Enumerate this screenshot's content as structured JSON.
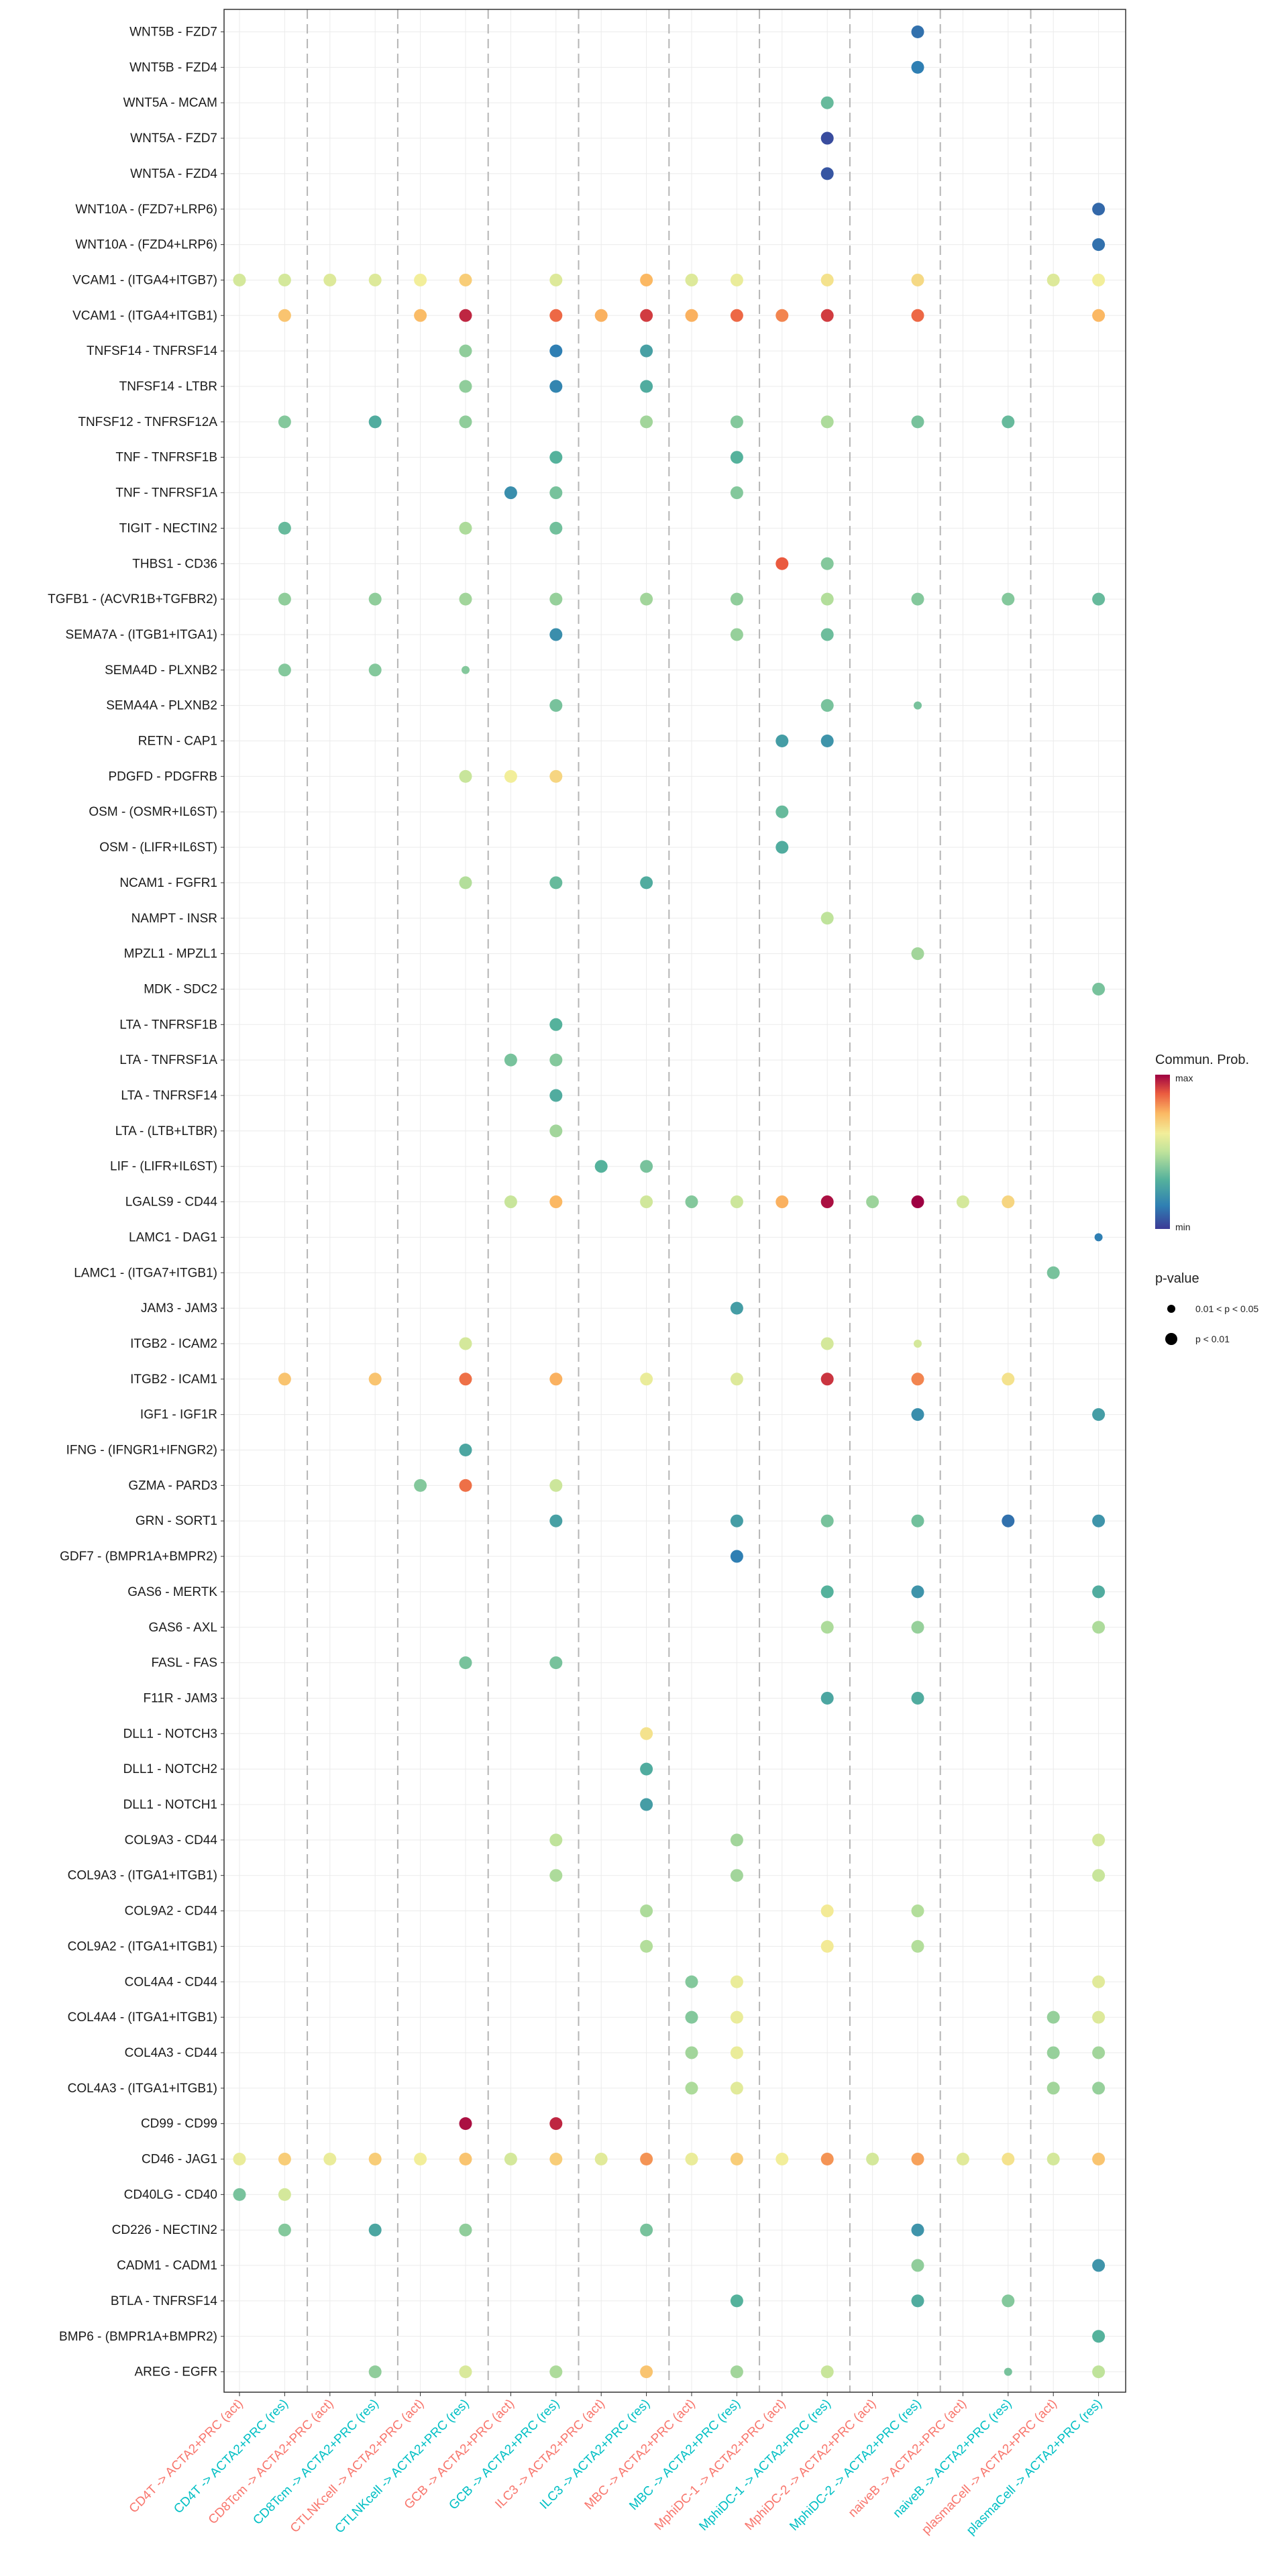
{
  "chart_data": {
    "type": "scatter",
    "subtype": "bubble-dotplot",
    "title": "",
    "xlabel": "",
    "ylabel": "",
    "grid": true,
    "x_categories": [
      "CD4T -> ACTA2+PRC (act)",
      "CD4T -> ACTA2+PRC (res)",
      "CD8Tcm -> ACTA2+PRC (act)",
      "CD8Tcm -> ACTA2+PRC (res)",
      "CTLNKcell -> ACTA2+PRC (act)",
      "CTLNKcell -> ACTA2+PRC (res)",
      "GCB -> ACTA2+PRC (act)",
      "GCB -> ACTA2+PRC (res)",
      "ILC3 -> ACTA2+PRC (act)",
      "ILC3 -> ACTA2+PRC (res)",
      "MBC -> ACTA2+PRC (act)",
      "MBC -> ACTA2+PRC (res)",
      "MphiDC-1 -> ACTA2+PRC (act)",
      "MphiDC-1 -> ACTA2+PRC (res)",
      "MphiDC-2 -> ACTA2+PRC (act)",
      "MphiDC-2 -> ACTA2+PRC (res)",
      "naiveB -> ACTA2+PRC (act)",
      "naiveB -> ACTA2+PRC (res)",
      "plasmaCell -> ACTA2+PRC (act)",
      "plasmaCell -> ACTA2+PRC (res)"
    ],
    "x_label_colors": {
      "act": "#F8766D",
      "res": "#00BFC4"
    },
    "y_categories": [
      "WNT5B - FZD7",
      "WNT5B - FZD4",
      "WNT5A - MCAM",
      "WNT5A - FZD7",
      "WNT5A - FZD4",
      "WNT10A - (FZD7+LRP6)",
      "WNT10A - (FZD4+LRP6)",
      "VCAM1 - (ITGA4+ITGB7)",
      "VCAM1 - (ITGA4+ITGB1)",
      "TNFSF14 - TNFRSF14",
      "TNFSF14 - LTBR",
      "TNFSF12 - TNFRSF12A",
      "TNF - TNFRSF1B",
      "TNF - TNFRSF1A",
      "TIGIT - NECTIN2",
      "THBS1 - CD36",
      "TGFB1 - (ACVR1B+TGFBR2)",
      "SEMA7A - (ITGB1+ITGA1)",
      "SEMA4D - PLXNB2",
      "SEMA4A - PLXNB2",
      "RETN - CAP1",
      "PDGFD - PDGFRB",
      "OSM - (OSMR+IL6ST)",
      "OSM - (LIFR+IL6ST)",
      "NCAM1 - FGFR1",
      "NAMPT - INSR",
      "MPZL1 - MPZL1",
      "MDK - SDC2",
      "LTA - TNFRSF1B",
      "LTA - TNFRSF1A",
      "LTA - TNFRSF14",
      "LTA - (LTB+LTBR)",
      "LIF - (LIFR+IL6ST)",
      "LGALS9 - CD44",
      "LAMC1 - DAG1",
      "LAMC1 - (ITGA7+ITGB1)",
      "JAM3 - JAM3",
      "ITGB2 - ICAM2",
      "ITGB2 - ICAM1",
      "IGF1 - IGF1R",
      "IFNG - (IFNGR1+IFNGR2)",
      "GZMA - PARD3",
      "GRN - SORT1",
      "GDF7 - (BMPR1A+BMPR2)",
      "GAS6 - MERTK",
      "GAS6 - AXL",
      "FASL - FAS",
      "F11R - JAM3",
      "DLL1 - NOTCH3",
      "DLL1 - NOTCH2",
      "DLL1 - NOTCH1",
      "COL9A3 - CD44",
      "COL9A3 - (ITGA1+ITGB1)",
      "COL9A2 - CD44",
      "COL9A2 - (ITGA1+ITGB1)",
      "COL4A4 - CD44",
      "COL4A4 - (ITGA1+ITGB1)",
      "COL4A3 - CD44",
      "COL4A3 - (ITGA1+ITGB1)",
      "CD99 - CD99",
      "CD46 - JAG1",
      "CD40LG - CD40",
      "CD226 - NECTIN2",
      "CADM1 - CADM1",
      "BTLA - TNFRSF14",
      "BMP6 - (BMPR1A+BMPR2)",
      "AREG - EGFR"
    ],
    "value_scale": "normalized 0 (min) to 1 (max) communication probability",
    "size_encoding": {
      "0": "0.01 < p < 0.05",
      "1": "p < 0.01"
    },
    "points": [
      [
        15,
        0,
        0.12,
        1
      ],
      [
        15,
        1,
        0.15,
        1
      ],
      [
        13,
        2,
        0.35,
        1
      ],
      [
        13,
        3,
        0.04,
        1
      ],
      [
        13,
        4,
        0.06,
        1
      ],
      [
        19,
        5,
        0.1,
        1
      ],
      [
        19,
        6,
        0.12,
        1
      ],
      [
        0,
        7,
        0.55,
        1
      ],
      [
        1,
        7,
        0.55,
        1
      ],
      [
        2,
        7,
        0.57,
        1
      ],
      [
        3,
        7,
        0.57,
        1
      ],
      [
        4,
        7,
        0.62,
        1
      ],
      [
        5,
        7,
        0.7,
        1
      ],
      [
        7,
        7,
        0.57,
        1
      ],
      [
        9,
        7,
        0.75,
        1
      ],
      [
        10,
        7,
        0.57,
        1
      ],
      [
        11,
        7,
        0.6,
        1
      ],
      [
        13,
        7,
        0.65,
        1
      ],
      [
        15,
        7,
        0.67,
        1
      ],
      [
        18,
        7,
        0.57,
        1
      ],
      [
        19,
        7,
        0.62,
        1
      ],
      [
        1,
        8,
        0.72,
        1
      ],
      [
        4,
        8,
        0.74,
        1
      ],
      [
        5,
        8,
        0.95,
        1
      ],
      [
        7,
        8,
        0.86,
        1
      ],
      [
        8,
        8,
        0.76,
        1
      ],
      [
        9,
        8,
        0.92,
        1
      ],
      [
        10,
        8,
        0.76,
        1
      ],
      [
        11,
        8,
        0.86,
        1
      ],
      [
        12,
        8,
        0.82,
        1
      ],
      [
        13,
        8,
        0.92,
        1
      ],
      [
        15,
        8,
        0.86,
        1
      ],
      [
        19,
        8,
        0.75,
        1
      ],
      [
        5,
        9,
        0.42,
        1
      ],
      [
        7,
        9,
        0.15,
        1
      ],
      [
        9,
        9,
        0.26,
        1
      ],
      [
        5,
        10,
        0.42,
        1
      ],
      [
        7,
        10,
        0.17,
        1
      ],
      [
        9,
        10,
        0.3,
        1
      ],
      [
        1,
        11,
        0.4,
        1
      ],
      [
        3,
        11,
        0.3,
        1
      ],
      [
        5,
        11,
        0.42,
        1
      ],
      [
        9,
        11,
        0.45,
        1
      ],
      [
        11,
        11,
        0.4,
        1
      ],
      [
        13,
        11,
        0.47,
        1
      ],
      [
        15,
        11,
        0.38,
        1
      ],
      [
        17,
        11,
        0.35,
        1
      ],
      [
        7,
        12,
        0.32,
        1
      ],
      [
        11,
        12,
        0.32,
        1
      ],
      [
        6,
        13,
        0.2,
        1
      ],
      [
        7,
        13,
        0.38,
        1
      ],
      [
        11,
        13,
        0.4,
        1
      ],
      [
        1,
        14,
        0.35,
        1
      ],
      [
        5,
        14,
        0.47,
        1
      ],
      [
        7,
        14,
        0.37,
        1
      ],
      [
        12,
        15,
        0.88,
        1
      ],
      [
        13,
        15,
        0.4,
        1
      ],
      [
        1,
        16,
        0.42,
        1
      ],
      [
        3,
        16,
        0.42,
        1
      ],
      [
        5,
        16,
        0.45,
        1
      ],
      [
        7,
        16,
        0.43,
        1
      ],
      [
        9,
        16,
        0.45,
        1
      ],
      [
        11,
        16,
        0.42,
        1
      ],
      [
        13,
        16,
        0.48,
        1
      ],
      [
        15,
        16,
        0.4,
        1
      ],
      [
        17,
        16,
        0.4,
        1
      ],
      [
        19,
        16,
        0.35,
        1
      ],
      [
        7,
        17,
        0.2,
        1
      ],
      [
        11,
        17,
        0.43,
        1
      ],
      [
        13,
        17,
        0.36,
        1
      ],
      [
        1,
        18,
        0.4,
        1
      ],
      [
        3,
        18,
        0.4,
        1
      ],
      [
        5,
        18,
        0.4,
        0
      ],
      [
        7,
        19,
        0.38,
        1
      ],
      [
        13,
        19,
        0.38,
        1
      ],
      [
        15,
        19,
        0.38,
        0
      ],
      [
        12,
        20,
        0.25,
        1
      ],
      [
        13,
        20,
        0.22,
        1
      ],
      [
        5,
        21,
        0.52,
        1
      ],
      [
        6,
        21,
        0.62,
        1
      ],
      [
        7,
        21,
        0.68,
        1
      ],
      [
        12,
        22,
        0.35,
        1
      ],
      [
        12,
        23,
        0.3,
        1
      ],
      [
        5,
        24,
        0.48,
        1
      ],
      [
        7,
        24,
        0.35,
        1
      ],
      [
        9,
        24,
        0.3,
        1
      ],
      [
        13,
        25,
        0.5,
        1
      ],
      [
        15,
        26,
        0.45,
        1
      ],
      [
        19,
        27,
        0.38,
        1
      ],
      [
        7,
        28,
        0.32,
        1
      ],
      [
        6,
        29,
        0.38,
        1
      ],
      [
        7,
        29,
        0.4,
        1
      ],
      [
        7,
        30,
        0.3,
        1
      ],
      [
        7,
        31,
        0.45,
        1
      ],
      [
        8,
        32,
        0.32,
        1
      ],
      [
        9,
        32,
        0.38,
        1
      ],
      [
        6,
        33,
        0.52,
        1
      ],
      [
        7,
        33,
        0.75,
        1
      ],
      [
        9,
        33,
        0.54,
        1
      ],
      [
        10,
        33,
        0.4,
        1
      ],
      [
        11,
        33,
        0.53,
        1
      ],
      [
        12,
        33,
        0.76,
        1
      ],
      [
        13,
        33,
        0.98,
        1
      ],
      [
        14,
        33,
        0.44,
        1
      ],
      [
        15,
        33,
        1.0,
        1
      ],
      [
        16,
        33,
        0.55,
        1
      ],
      [
        17,
        33,
        0.68,
        1
      ],
      [
        19,
        34,
        0.15,
        0
      ],
      [
        18,
        35,
        0.38,
        1
      ],
      [
        11,
        36,
        0.25,
        1
      ],
      [
        5,
        37,
        0.55,
        1
      ],
      [
        13,
        37,
        0.55,
        1
      ],
      [
        15,
        37,
        0.55,
        0
      ],
      [
        1,
        38,
        0.72,
        1
      ],
      [
        3,
        38,
        0.72,
        1
      ],
      [
        5,
        38,
        0.85,
        1
      ],
      [
        7,
        38,
        0.76,
        1
      ],
      [
        9,
        38,
        0.6,
        1
      ],
      [
        11,
        38,
        0.57,
        1
      ],
      [
        13,
        38,
        0.93,
        1
      ],
      [
        15,
        38,
        0.82,
        1
      ],
      [
        17,
        38,
        0.65,
        1
      ],
      [
        15,
        39,
        0.2,
        1
      ],
      [
        19,
        39,
        0.25,
        1
      ],
      [
        5,
        40,
        0.28,
        1
      ],
      [
        4,
        41,
        0.4,
        1
      ],
      [
        5,
        41,
        0.85,
        1
      ],
      [
        7,
        41,
        0.53,
        1
      ],
      [
        7,
        42,
        0.26,
        1
      ],
      [
        11,
        42,
        0.25,
        1
      ],
      [
        13,
        42,
        0.38,
        1
      ],
      [
        15,
        42,
        0.37,
        1
      ],
      [
        17,
        42,
        0.12,
        1
      ],
      [
        19,
        42,
        0.22,
        1
      ],
      [
        11,
        43,
        0.15,
        1
      ],
      [
        13,
        44,
        0.32,
        1
      ],
      [
        15,
        44,
        0.22,
        1
      ],
      [
        19,
        44,
        0.3,
        1
      ],
      [
        13,
        45,
        0.47,
        1
      ],
      [
        15,
        45,
        0.43,
        1
      ],
      [
        19,
        45,
        0.47,
        1
      ],
      [
        5,
        46,
        0.38,
        1
      ],
      [
        7,
        46,
        0.38,
        1
      ],
      [
        13,
        47,
        0.28,
        1
      ],
      [
        15,
        47,
        0.3,
        1
      ],
      [
        9,
        48,
        0.65,
        1
      ],
      [
        9,
        49,
        0.3,
        1
      ],
      [
        9,
        50,
        0.25,
        1
      ],
      [
        7,
        51,
        0.5,
        1
      ],
      [
        11,
        51,
        0.45,
        1
      ],
      [
        19,
        51,
        0.55,
        1
      ],
      [
        7,
        52,
        0.47,
        1
      ],
      [
        11,
        52,
        0.45,
        1
      ],
      [
        19,
        52,
        0.52,
        1
      ],
      [
        9,
        53,
        0.47,
        1
      ],
      [
        13,
        53,
        0.63,
        1
      ],
      [
        15,
        53,
        0.48,
        1
      ],
      [
        9,
        54,
        0.48,
        1
      ],
      [
        13,
        54,
        0.63,
        1
      ],
      [
        15,
        54,
        0.48,
        1
      ],
      [
        10,
        55,
        0.4,
        1
      ],
      [
        11,
        55,
        0.6,
        1
      ],
      [
        19,
        55,
        0.58,
        1
      ],
      [
        10,
        56,
        0.4,
        1
      ],
      [
        11,
        56,
        0.6,
        1
      ],
      [
        18,
        56,
        0.43,
        1
      ],
      [
        19,
        56,
        0.57,
        1
      ],
      [
        10,
        57,
        0.45,
        1
      ],
      [
        11,
        57,
        0.6,
        1
      ],
      [
        18,
        57,
        0.43,
        1
      ],
      [
        19,
        57,
        0.45,
        1
      ],
      [
        10,
        58,
        0.47,
        1
      ],
      [
        11,
        58,
        0.58,
        1
      ],
      [
        18,
        58,
        0.45,
        1
      ],
      [
        19,
        58,
        0.43,
        1
      ],
      [
        5,
        59,
        0.98,
        1
      ],
      [
        7,
        59,
        0.95,
        1
      ],
      [
        0,
        60,
        0.6,
        1
      ],
      [
        1,
        60,
        0.7,
        1
      ],
      [
        2,
        60,
        0.6,
        1
      ],
      [
        3,
        60,
        0.7,
        1
      ],
      [
        4,
        60,
        0.62,
        1
      ],
      [
        5,
        60,
        0.72,
        1
      ],
      [
        6,
        60,
        0.55,
        1
      ],
      [
        7,
        60,
        0.7,
        1
      ],
      [
        8,
        60,
        0.58,
        1
      ],
      [
        9,
        60,
        0.8,
        1
      ],
      [
        10,
        60,
        0.6,
        1
      ],
      [
        11,
        60,
        0.7,
        1
      ],
      [
        12,
        60,
        0.62,
        1
      ],
      [
        13,
        60,
        0.8,
        1
      ],
      [
        14,
        60,
        0.55,
        1
      ],
      [
        15,
        60,
        0.78,
        1
      ],
      [
        16,
        60,
        0.58,
        1
      ],
      [
        17,
        60,
        0.65,
        1
      ],
      [
        18,
        60,
        0.55,
        1
      ],
      [
        19,
        60,
        0.72,
        1
      ],
      [
        0,
        61,
        0.38,
        1
      ],
      [
        1,
        61,
        0.55,
        1
      ],
      [
        1,
        62,
        0.4,
        1
      ],
      [
        3,
        62,
        0.28,
        1
      ],
      [
        5,
        62,
        0.42,
        1
      ],
      [
        9,
        62,
        0.38,
        1
      ],
      [
        15,
        62,
        0.22,
        1
      ],
      [
        15,
        63,
        0.42,
        1
      ],
      [
        19,
        63,
        0.22,
        1
      ],
      [
        11,
        64,
        0.32,
        1
      ],
      [
        15,
        64,
        0.3,
        1
      ],
      [
        17,
        64,
        0.4,
        1
      ],
      [
        19,
        65,
        0.32,
        1
      ],
      [
        3,
        66,
        0.42,
        1
      ],
      [
        5,
        66,
        0.56,
        1
      ],
      [
        7,
        66,
        0.47,
        1
      ],
      [
        9,
        66,
        0.72,
        1
      ],
      [
        11,
        66,
        0.45,
        1
      ],
      [
        13,
        66,
        0.52,
        1
      ],
      [
        17,
        66,
        0.38,
        0
      ],
      [
        19,
        66,
        0.5,
        1
      ]
    ]
  },
  "legend": {
    "color_title": "Commun. Prob.",
    "color_max": "max",
    "color_min": "min",
    "size_title": "p-value",
    "size_items": [
      "0.01 < p < 0.05",
      "p < 0.01"
    ]
  }
}
